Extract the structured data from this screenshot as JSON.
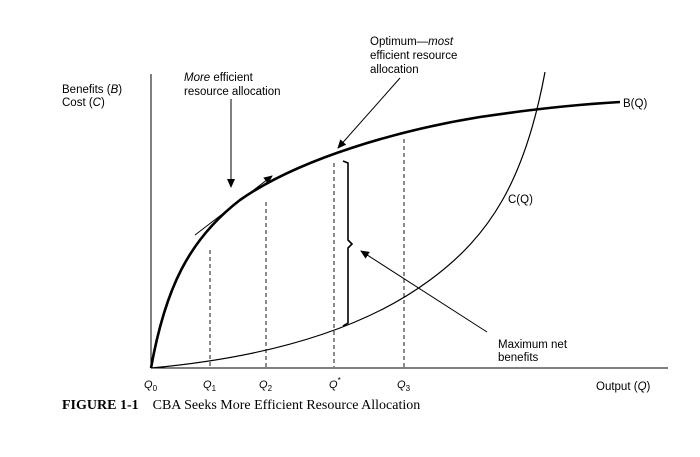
{
  "figure": {
    "y_axis_label_line1": [
      "Benefits (",
      "B",
      ")"
    ],
    "y_axis_label_line2": [
      "Cost (",
      "C",
      ")"
    ],
    "x_axis_label": [
      "Output (",
      "Q",
      ")"
    ],
    "more_efficient_line1": [
      "More",
      " efficient"
    ],
    "more_efficient_line2": "resource allocation",
    "optimum_line1": [
      "Optimum—",
      "most"
    ],
    "optimum_line2": "efficient resource",
    "optimum_line3": "allocation",
    "benefit_curve_label": "B(Q)",
    "cost_curve_label": "C(Q)",
    "max_net_line1": "Maximum net",
    "max_net_line2": "benefits",
    "ticks": [
      {
        "base": "Q",
        "sub": "0"
      },
      {
        "base": "Q",
        "sub": "1"
      },
      {
        "base": "Q",
        "sub": "2"
      },
      {
        "base": "Q",
        "sup": "*"
      },
      {
        "base": "Q",
        "sub": "3"
      }
    ]
  },
  "caption": {
    "number": "FIGURE 1-1",
    "title": "CBA Seeks More Efficient Resource Allocation"
  }
}
